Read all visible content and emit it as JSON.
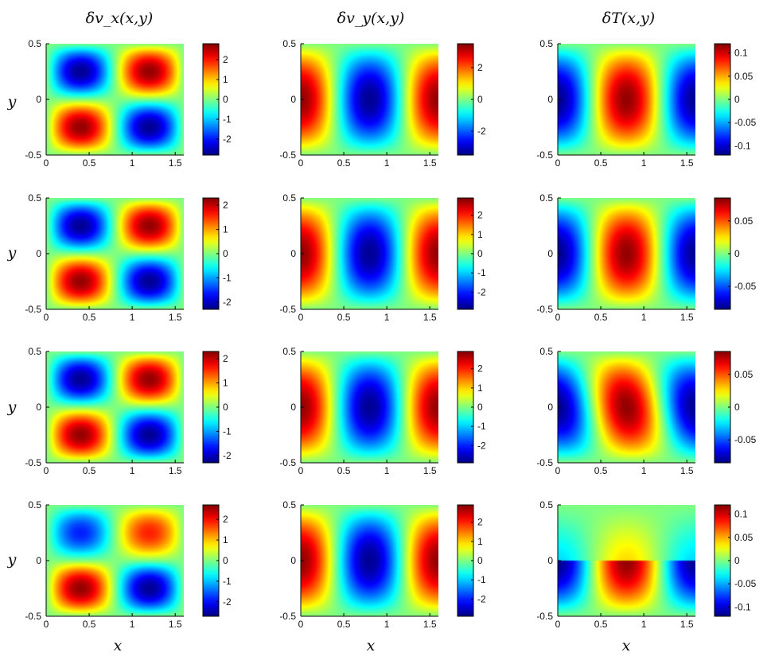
{
  "figure": {
    "column_titles": [
      "δv_x(x,y)",
      "δv_y(x,y)",
      "δT(x,y)"
    ],
    "row_ylabel": "y",
    "col_xlabel": "x"
  },
  "chart_data": {
    "type": "heatmap",
    "colormap": "jet",
    "xlim": [
      0,
      1.6
    ],
    "ylim": [
      -0.5,
      0.5
    ],
    "x_ticks": [
      "0",
      "0.5",
      "1",
      "1.5"
    ],
    "y_ticks": [
      "-0.5",
      "0",
      "0.5"
    ],
    "panels": [
      {
        "row": 0,
        "col": 0,
        "field": "vx",
        "clim": [
          -2.8,
          2.8
        ],
        "colorbar_ticks": [
          -2,
          -1,
          0,
          1,
          2
        ],
        "amplitude": 1.0,
        "top_mode_scale": 1.0,
        "tilt": 0.0
      },
      {
        "row": 0,
        "col": 1,
        "field": "vy",
        "clim": [
          -3.5,
          3.5
        ],
        "colorbar_ticks": [
          -2,
          0,
          2
        ],
        "amplitude": 1.0,
        "top_mode_scale": 1.0,
        "tilt": 0.0
      },
      {
        "row": 0,
        "col": 2,
        "field": "T",
        "clim": [
          -0.12,
          0.12
        ],
        "colorbar_ticks": [
          -0.1,
          -0.05,
          0,
          0.05,
          0.1
        ],
        "amplitude": 1.0,
        "top_mode_scale": 1.0,
        "tilt": 0.0
      },
      {
        "row": 1,
        "col": 0,
        "field": "vx",
        "clim": [
          -2.3,
          2.3
        ],
        "colorbar_ticks": [
          -2,
          -1,
          0,
          1,
          2
        ],
        "amplitude": 1.0,
        "top_mode_scale": 1.0,
        "tilt": 0.0
      },
      {
        "row": 1,
        "col": 1,
        "field": "vy",
        "clim": [
          -2.9,
          2.9
        ],
        "colorbar_ticks": [
          -2,
          -1,
          0,
          1,
          2
        ],
        "amplitude": 1.0,
        "top_mode_scale": 1.0,
        "tilt": 0.0
      },
      {
        "row": 1,
        "col": 2,
        "field": "T",
        "clim": [
          -0.085,
          0.085
        ],
        "colorbar_ticks": [
          -0.05,
          0,
          0.05
        ],
        "amplitude": 1.0,
        "top_mode_scale": 1.0,
        "tilt": 0.0
      },
      {
        "row": 2,
        "col": 0,
        "field": "vx",
        "clim": [
          -2.3,
          2.3
        ],
        "colorbar_ticks": [
          -2,
          -1,
          0,
          1,
          2
        ],
        "amplitude": 1.0,
        "top_mode_scale": 1.0,
        "tilt": 0.0
      },
      {
        "row": 2,
        "col": 1,
        "field": "vy",
        "clim": [
          -2.9,
          2.9
        ],
        "colorbar_ticks": [
          -2,
          -1,
          0,
          1,
          2
        ],
        "amplitude": 1.0,
        "top_mode_scale": 1.0,
        "tilt": 0.0
      },
      {
        "row": 2,
        "col": 2,
        "field": "T",
        "clim": [
          -0.085,
          0.085
        ],
        "colorbar_ticks": [
          -0.05,
          0,
          0.05
        ],
        "amplitude": 1.0,
        "top_mode_scale": 1.0,
        "tilt": 0.45
      },
      {
        "row": 3,
        "col": 0,
        "field": "vx",
        "clim": [
          -2.7,
          2.7
        ],
        "colorbar_ticks": [
          -2,
          -1,
          0,
          1,
          2
        ],
        "amplitude": 1.0,
        "top_mode_scale": 0.72,
        "tilt": 0.0
      },
      {
        "row": 3,
        "col": 1,
        "field": "vy",
        "clim": [
          -2.9,
          2.9
        ],
        "colorbar_ticks": [
          -2,
          -1,
          0,
          1,
          2
        ],
        "amplitude": 1.0,
        "top_mode_scale": 1.0,
        "tilt": 0.0
      },
      {
        "row": 3,
        "col": 2,
        "field": "T",
        "clim": [
          -0.12,
          0.12
        ],
        "colorbar_ticks": [
          -0.1,
          -0.05,
          0,
          0.05,
          0.1
        ],
        "amplitude": 1.0,
        "top_mode_scale": 0.35,
        "tilt": 0.0
      }
    ]
  }
}
